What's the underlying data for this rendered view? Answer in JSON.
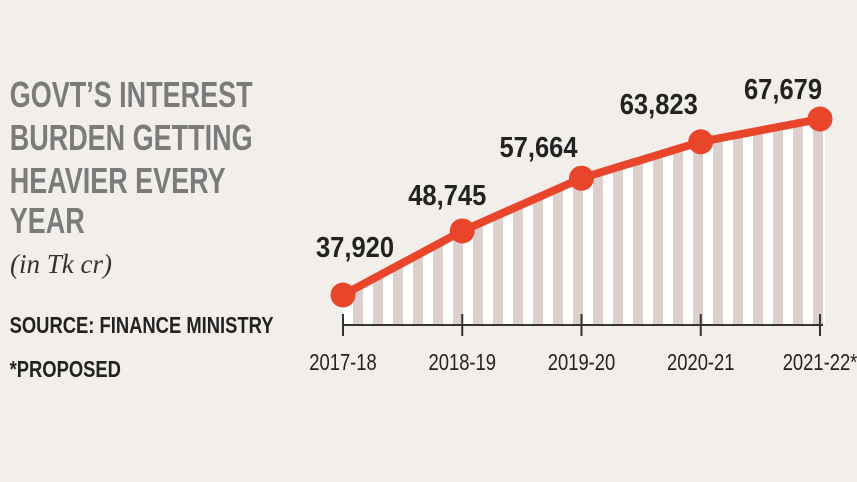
{
  "chart_data": {
    "type": "line",
    "title": [
      "GOVT’S INTEREST",
      "BURDEN GETTING",
      "HEAVIER EVERY",
      "YEAR"
    ],
    "subtitle": "(in Tk cr)",
    "source": "SOURCE: FINANCE MINISTRY",
    "note": "*PROPOSED",
    "categories": [
      "2017-18",
      "2018-19",
      "2019-20",
      "2020-21",
      "2021-22*"
    ],
    "values": [
      37920,
      48745,
      57664,
      63823,
      67679
    ],
    "value_labels": [
      "37,920",
      "48,745",
      "57,664",
      "63,823",
      "67,679"
    ],
    "color": "#e8452b"
  }
}
